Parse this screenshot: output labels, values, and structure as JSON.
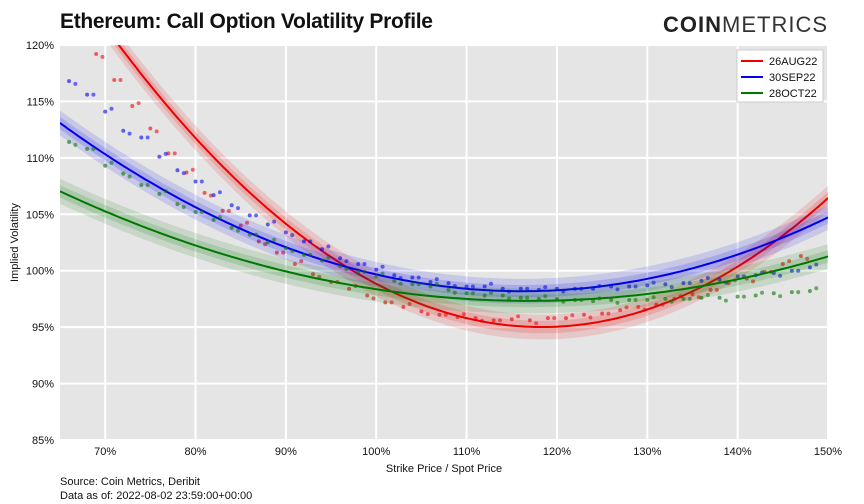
{
  "header": {
    "title": "Ethereum: Call Option Volatility Profile",
    "logo_bold": "COIN",
    "logo_light": "METRICS"
  },
  "footer": {
    "source_label": "Source:",
    "source_value": "Coin Metrics, Deribit",
    "asof_label": "Data as of:",
    "asof_value": "2022-08-02 23:59:00+00:00"
  },
  "chart_data": {
    "type": "scatter",
    "title": "Ethereum: Call Option Volatility Profile",
    "xlabel": "Strike Price / Spot Price",
    "ylabel": "Implied Volatility",
    "xlim": [
      65,
      150
    ],
    "ylim": [
      85,
      120
    ],
    "xticks": [
      70,
      80,
      90,
      100,
      110,
      120,
      130,
      140,
      150
    ],
    "yticks": [
      85,
      90,
      95,
      100,
      105,
      110,
      115,
      120
    ],
    "xtick_labels": [
      "70%",
      "80%",
      "90%",
      "100%",
      "110%",
      "120%",
      "130%",
      "140%",
      "150%"
    ],
    "ytick_labels": [
      "85%",
      "90%",
      "95%",
      "100%",
      "105%",
      "110%",
      "115%",
      "120%"
    ],
    "grid": true,
    "legend_position": "top-right",
    "series": [
      {
        "name": "26AUG22",
        "color": "#ee0000",
        "fit_coeffs": [
          95.8,
          -0.19,
          0.0114
        ],
        "x_start": 68.5,
        "x": [
          69,
          71,
          73,
          75,
          77,
          79,
          81,
          83,
          85,
          87,
          89,
          91,
          93,
          95,
          97,
          99,
          101,
          103,
          105,
          107,
          109,
          111,
          113,
          115,
          117,
          119,
          121,
          123,
          125,
          127,
          129,
          131,
          133,
          135,
          137,
          139,
          141,
          143,
          145,
          147
        ],
        "y": [
          119.2,
          116.9,
          114.6,
          112.6,
          110.4,
          108.7,
          106.9,
          105.3,
          104.0,
          102.6,
          101.6,
          100.6,
          99.7,
          99.0,
          98.4,
          97.8,
          97.2,
          96.8,
          96.4,
          96.1,
          95.9,
          95.8,
          95.6,
          95.7,
          95.6,
          95.8,
          95.8,
          96.1,
          96.2,
          96.5,
          96.8,
          97.0,
          97.5,
          97.9,
          98.3,
          98.9,
          99.3,
          99.9,
          100.6,
          101.3
        ]
      },
      {
        "name": "30SEP22",
        "color": "#0000ee",
        "fit_coeffs": [
          98.4,
          -0.07,
          0.0057
        ],
        "x_start": 65,
        "x": [
          66,
          68,
          70,
          72,
          74,
          76,
          78,
          80,
          82,
          84,
          86,
          88,
          90,
          92,
          94,
          96,
          98,
          100,
          102,
          104,
          106,
          108,
          110,
          112,
          114,
          116,
          118,
          120,
          122,
          124,
          126,
          128,
          130,
          132,
          134,
          136,
          138,
          140,
          142,
          144,
          146,
          148
        ],
        "y": [
          116.8,
          115.6,
          114.1,
          112.4,
          111.8,
          110.1,
          108.9,
          107.9,
          106.7,
          105.8,
          104.9,
          104.1,
          103.4,
          102.6,
          101.9,
          101.1,
          100.6,
          100.1,
          99.6,
          99.4,
          99.0,
          98.9,
          98.6,
          98.6,
          98.4,
          98.4,
          98.3,
          98.4,
          98.4,
          98.4,
          98.6,
          98.6,
          98.7,
          98.8,
          98.9,
          99.1,
          99.2,
          99.5,
          99.6,
          99.8,
          100.0,
          100.3
        ]
      },
      {
        "name": "28OCT22",
        "color": "#007700",
        "fit_coeffs": [
          97.5,
          -0.05,
          0.0036
        ],
        "x_start": 65,
        "x": [
          66,
          68,
          70,
          72,
          74,
          76,
          78,
          80,
          82,
          84,
          86,
          88,
          90,
          92,
          94,
          96,
          98,
          100,
          102,
          104,
          106,
          108,
          110,
          112,
          114,
          116,
          118,
          120,
          122,
          124,
          126,
          128,
          130,
          132,
          134,
          136,
          138,
          140,
          142,
          144,
          146,
          148
        ],
        "y": [
          111.4,
          110.8,
          109.3,
          108.6,
          107.6,
          106.8,
          105.9,
          105.2,
          104.5,
          103.8,
          103.2,
          102.5,
          102.0,
          101.4,
          100.9,
          100.4,
          99.9,
          99.5,
          99.1,
          98.8,
          98.6,
          98.3,
          98.0,
          97.8,
          97.8,
          97.6,
          97.5,
          97.5,
          97.4,
          97.3,
          97.4,
          97.4,
          97.4,
          97.5,
          97.5,
          97.6,
          97.6,
          97.7,
          97.8,
          98.0,
          98.1,
          98.2
        ]
      }
    ]
  }
}
